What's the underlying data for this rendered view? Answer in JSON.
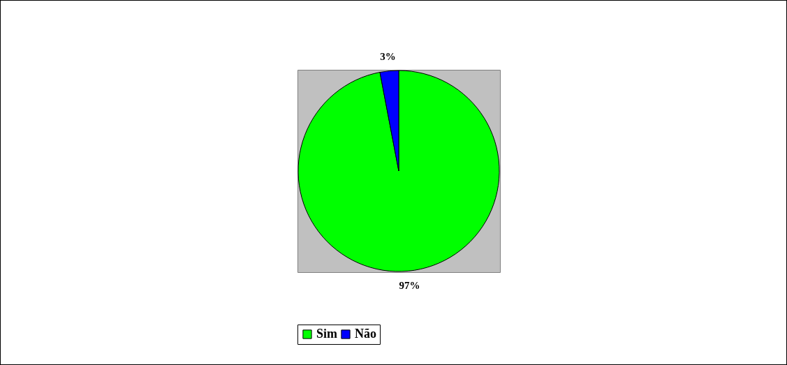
{
  "chart_data": {
    "type": "pie",
    "categories": [
      "Sim",
      "Não"
    ],
    "values": [
      97,
      3
    ],
    "colors": [
      "#00ff00",
      "#0000ff"
    ],
    "value_labels": [
      "97%",
      "3%"
    ],
    "legend": "bottom"
  }
}
